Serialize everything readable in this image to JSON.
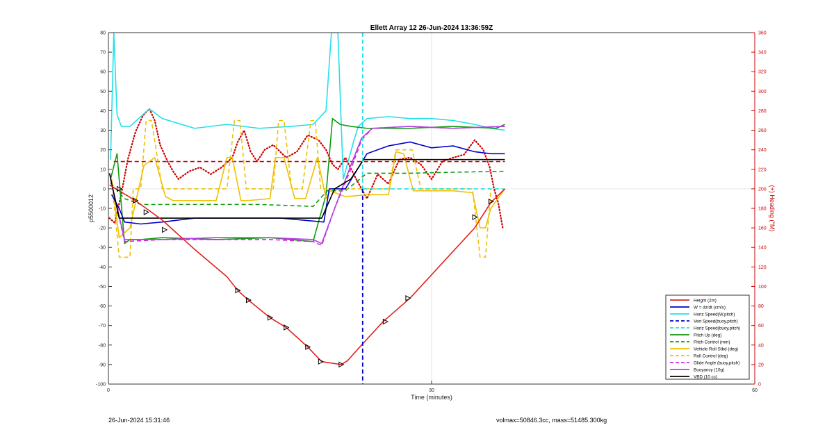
{
  "chart_data": {
    "type": "line",
    "title": "Ellett Array 12 26-Jun-2024 13:36:59Z",
    "xlabel": "Time (minutes)",
    "ylabel": "p5500012",
    "ylabel_right": "(+) Heading (°M)",
    "xlim": [
      0,
      60
    ],
    "ylim": [
      -100,
      80
    ],
    "ylim_right": [
      0,
      360
    ],
    "xticks": [
      0,
      30,
      60
    ],
    "yticks": [
      -100,
      -90,
      -80,
      -70,
      -60,
      -50,
      -40,
      -30,
      -20,
      -10,
      0,
      10,
      20,
      30,
      40,
      50,
      60,
      70,
      80
    ],
    "yticks_right": [
      0,
      20,
      40,
      60,
      80,
      100,
      120,
      140,
      160,
      180,
      200,
      220,
      240,
      260,
      280,
      300,
      320,
      340,
      360
    ],
    "grid": true,
    "legend_position": "bottom-right",
    "vertical_line_x": 23.6,
    "series": [
      {
        "name": "Height (2m)",
        "color": "#e0201b",
        "style": "solid",
        "x": [
          0.1,
          1,
          2.5,
          5,
          8,
          11,
          12,
          13,
          15,
          16.5,
          18.5,
          19.8,
          21.6,
          22.2,
          23.5,
          25.5,
          28,
          31,
          34,
          35.5,
          36.8
        ],
        "y": [
          2,
          -1,
          -6,
          -16,
          -31,
          -45,
          -52,
          -57,
          -66,
          -71,
          -81,
          -88.5,
          -90,
          -88,
          -80,
          -68,
          -56,
          -38,
          -20,
          -7,
          0
        ],
        "markers_x": [
          1,
          2.5,
          3.5,
          5.2,
          12,
          13,
          15,
          16.5,
          18.5,
          19.7,
          21.6,
          25.7,
          27.8,
          34,
          35.5
        ],
        "markers_y": [
          0,
          -6,
          -12,
          -21,
          -52,
          -57,
          -66,
          -71,
          -81,
          -88.5,
          -90,
          -68,
          -56,
          -14.5,
          -6.5
        ]
      },
      {
        "name": "W = dz/dt (cm/s)",
        "color": "#0000cc",
        "style": "solid",
        "x": [
          0.3,
          1,
          1.5,
          3,
          5,
          8,
          12,
          16,
          20,
          20.5,
          22,
          24,
          26,
          28,
          30,
          32,
          34,
          35.5,
          36.8
        ],
        "y": [
          -3,
          -10,
          -17,
          -18,
          -17,
          -15,
          -15,
          -15,
          -17,
          0,
          0,
          18,
          22,
          24,
          21,
          22,
          19,
          18,
          18
        ]
      },
      {
        "name": "Horiz Speed(W,pitch)",
        "color": "#22e0e8",
        "style": "solid",
        "x": [
          0.2,
          0.5,
          0.8,
          1.2,
          2,
          3,
          3.8,
          5,
          8,
          11,
          14,
          17,
          19,
          20.2,
          20.7,
          21.3,
          21.8,
          22.3,
          22.8,
          23.2,
          24,
          26,
          28,
          30,
          32,
          34,
          35.5,
          36.8
        ],
        "y": [
          15,
          80,
          38,
          32,
          32,
          37,
          41,
          36,
          31,
          33,
          31,
          32,
          33,
          40,
          80,
          80,
          5,
          15,
          25,
          32,
          36,
          37,
          36,
          36,
          35,
          33,
          31,
          30
        ]
      },
      {
        "name": "Vert Speed(buoy,pitch)",
        "color": "#0000cc",
        "style": "dashed",
        "x": [],
        "y": []
      },
      {
        "name": "Horiz Speed(buoy,pitch)",
        "color": "#22e0e8",
        "style": "dashed",
        "x": [
          23.6,
          36.8
        ],
        "y": [
          0,
          0
        ]
      },
      {
        "name": "Pitch Up (deg)",
        "color": "#109a10",
        "style": "solid",
        "x": [
          0.2,
          0.8,
          1.5,
          2,
          3,
          5,
          10,
          15,
          19,
          20.2,
          20.8,
          21.5,
          22.5,
          24,
          28,
          32,
          36,
          36.8
        ],
        "y": [
          5,
          18,
          -28,
          -26,
          -26,
          -25,
          -26,
          -25,
          -27,
          -3,
          36,
          33,
          32,
          31,
          31,
          32,
          31,
          33
        ]
      },
      {
        "name": "Pitch Control (mm)",
        "color": "#109a10",
        "style": "dashed",
        "x": [
          0.2,
          1.5,
          3,
          8,
          14,
          19,
          20.3,
          22,
          24,
          28,
          32,
          36.8
        ],
        "y": [
          3,
          -5,
          -8,
          -8,
          -8,
          -9,
          -1,
          -1,
          8,
          8,
          8.5,
          9
        ]
      },
      {
        "name": "Vehicle Roll Stbd (deg)",
        "color": "#f0c000",
        "style": "solid",
        "x": [
          0.3,
          1,
          2,
          2.6,
          3.3,
          4.3,
          5.3,
          6,
          10,
          11,
          11.5,
          12.3,
          13,
          15,
          15.5,
          16.3,
          17.3,
          18.3,
          19.4,
          20.2,
          20.6,
          22,
          24,
          25,
          26,
          26.7,
          27.4,
          28.3,
          29,
          32,
          33.8,
          34.5,
          35,
          35.5,
          36.8
        ],
        "y": [
          5,
          -25,
          -20,
          -5,
          12,
          16,
          -4,
          -6,
          -6,
          16,
          16,
          -6,
          -6,
          -5,
          16,
          16,
          -5,
          -5,
          16,
          -5,
          -1,
          -4,
          -3,
          -3,
          -3,
          19,
          18,
          -1,
          -1,
          -1,
          -2,
          -20,
          -20,
          -10,
          0
        ]
      },
      {
        "name": "Roll Control (deg)",
        "color": "#f0c000",
        "style": "dashed",
        "x": [
          0.3,
          1,
          2,
          2.3,
          3,
          3.5,
          4,
          5,
          11,
          11.7,
          12.2,
          12.8,
          15.3,
          15.8,
          16.3,
          17,
          18,
          18.8,
          19.2,
          19.7,
          20.3,
          22,
          24,
          26,
          26.7,
          28.2,
          29,
          33.8,
          34.5,
          35,
          35.5
        ],
        "y": [
          5,
          -35,
          -35,
          0,
          0,
          35,
          35,
          0,
          0,
          35,
          35,
          0,
          0,
          35,
          35,
          0,
          0,
          35,
          35,
          0,
          0,
          0,
          0,
          0,
          20,
          20,
          0,
          0,
          -35,
          -35,
          0
        ]
      },
      {
        "name": "Glide Angle (buoy,pitch)",
        "color": "#e020e0",
        "style": "dashed",
        "x": [
          0.2,
          1.5,
          5,
          10,
          15,
          19,
          19.8,
          21,
          22.5,
          23.5,
          24.5,
          28,
          32,
          36.8
        ],
        "y": [
          5,
          -27,
          -26,
          -26,
          -26,
          -27,
          -29,
          -10,
          10,
          25,
          31,
          32,
          31,
          32
        ]
      },
      {
        "name": "Buoyancy (10g)",
        "color": "#b040e0",
        "style": "solid",
        "x": [
          0.2,
          1.5,
          5,
          10,
          15,
          19,
          19.8,
          21,
          22.5,
          23.5,
          24.5,
          28,
          32,
          36.8
        ],
        "y": [
          5,
          -26,
          -26,
          -25,
          -25,
          -26,
          -28,
          -10,
          12,
          26,
          31,
          32,
          31,
          32
        ]
      },
      {
        "name": "VBD (10 cc)",
        "color": "#000000",
        "style": "solid",
        "x": [
          0.1,
          1,
          5,
          10,
          15,
          19,
          19.8,
          21,
          22.5,
          23.7,
          28,
          36.8
        ],
        "y": [
          8,
          -15,
          -15,
          -15,
          -15,
          -15,
          -15,
          0,
          5,
          15,
          15,
          15
        ]
      }
    ],
    "heading_series": {
      "name": "Heading",
      "color": "#cc0000",
      "style": "dotted",
      "axis": "right",
      "x": [
        0.1,
        0.6,
        1.2,
        1.8,
        2.5,
        3.2,
        3.8,
        4.3,
        4.8,
        5.5,
        6,
        6.5,
        7.5,
        8.5,
        9.5,
        10.5,
        11.5,
        12,
        12.6,
        13.2,
        13.8,
        14.5,
        15.3,
        16.5,
        17.5,
        18.5,
        19.5,
        20.2,
        20.8,
        21.3,
        22,
        23,
        24,
        25,
        26,
        27,
        28,
        29,
        30,
        31,
        32,
        33,
        34,
        34.8,
        35.4,
        35.8,
        36.2,
        36.6
      ],
      "y": [
        170,
        165,
        195,
        230,
        258,
        275,
        282,
        270,
        245,
        228,
        218,
        210,
        218,
        222,
        215,
        222,
        232,
        248,
        260,
        238,
        228,
        240,
        245,
        232,
        238,
        255,
        250,
        240,
        225,
        220,
        232,
        210,
        190,
        215,
        205,
        230,
        232,
        225,
        210,
        228,
        232,
        235,
        250,
        240,
        222,
        200,
        185,
        160
      ]
    },
    "heading_reference": {
      "color": "#cc0000",
      "style": "dashed",
      "value": 228
    }
  },
  "footer": {
    "left": "26-Jun-2024 15:31:46",
    "right": "volmax=50846.3cc, mass=51485.300kg"
  }
}
